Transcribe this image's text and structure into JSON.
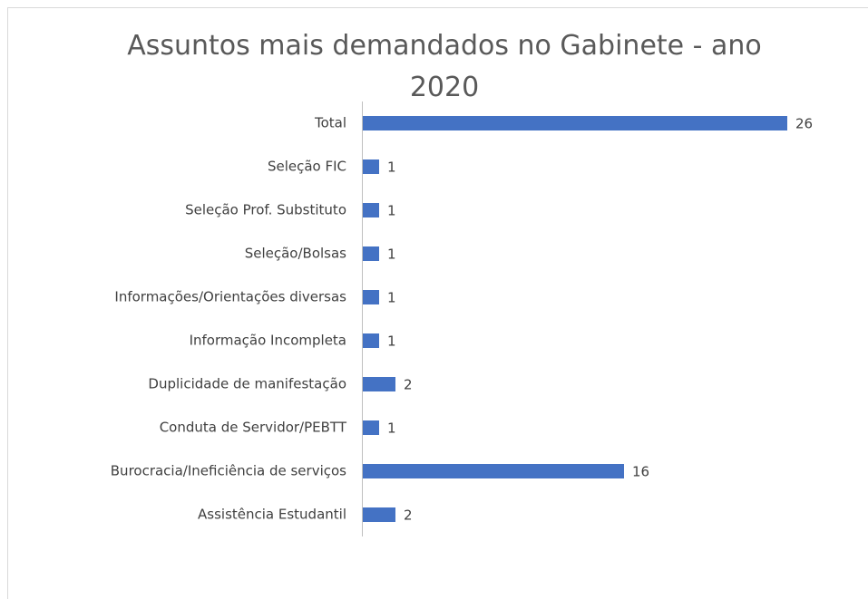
{
  "chart_data": {
    "type": "bar",
    "orientation": "horizontal",
    "title": "Assuntos mais demandados no Gabinete - ano 2020",
    "categories": [
      "Total",
      "Seleção FIC",
      "Seleção Prof. Substituto",
      "Seleção/Bolsas",
      "Informações/Orientações diversas",
      "Informação Incompleta",
      "Duplicidade de manifestação",
      "Conduta de Servidor/PEBTT",
      "Burocracia/Ineficiência de serviços",
      "Assistência Estudantil"
    ],
    "values": [
      26,
      1,
      1,
      1,
      1,
      1,
      2,
      1,
      16,
      2
    ],
    "color": "#4472c4"
  }
}
